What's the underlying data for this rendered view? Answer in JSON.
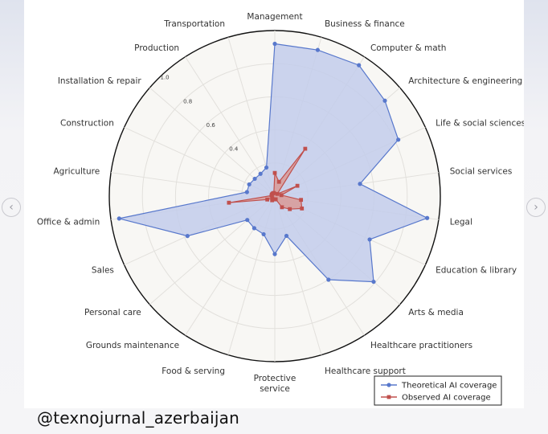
{
  "colors": {
    "theoretical": "#5878cc",
    "theoretical_fill": "#c3cdeb",
    "observed": "#c0504d",
    "observed_fill": "#d99a97",
    "plot_bg": "#f8f7f4",
    "grid": "#e2e0dc"
  },
  "watermark": "@texnojurnal_azerbaijan",
  "nav": {
    "prev_icon": "chevron-left-icon",
    "next_icon": "chevron-right-icon"
  },
  "chart_data": {
    "type": "radar",
    "categories": [
      "Management",
      "Business & finance",
      "Computer & math",
      "Architecture & engineering",
      "Life & social sciences",
      "Social services",
      "Legal",
      "Education & library",
      "Arts & media",
      "Healthcare practitioners",
      "Healthcare support",
      "Protective service",
      "Food & serving",
      "Grounds maintenance",
      "Personal care",
      "Sales",
      "Office & admin",
      "Agriculture",
      "Construction",
      "Installation & repair",
      "Production",
      "Transportation"
    ],
    "rlim": [
      0,
      1.0
    ],
    "rticks": [
      0.4,
      0.6,
      0.8,
      1.0
    ],
    "grid": true,
    "legend_position": "bottom-right",
    "series": [
      {
        "name": "Theoretical AI coverage",
        "values": [
          0.92,
          0.92,
          0.94,
          0.88,
          0.82,
          0.52,
          0.93,
          0.63,
          0.79,
          0.6,
          0.25,
          0.35,
          0.24,
          0.23,
          0.22,
          0.58,
          0.95,
          0.17,
          0.17,
          0.16,
          0.16,
          0.18
        ]
      },
      {
        "name": "Observed AI coverage",
        "values": [
          0.14,
          0.09,
          0.34,
          0.02,
          0.15,
          0.04,
          0.16,
          0.18,
          0.12,
          0.08,
          0.02,
          0.02,
          0.02,
          0.03,
          0.02,
          0.05,
          0.28,
          0.02,
          0.02,
          0.02,
          0.02,
          0.02
        ]
      }
    ]
  }
}
